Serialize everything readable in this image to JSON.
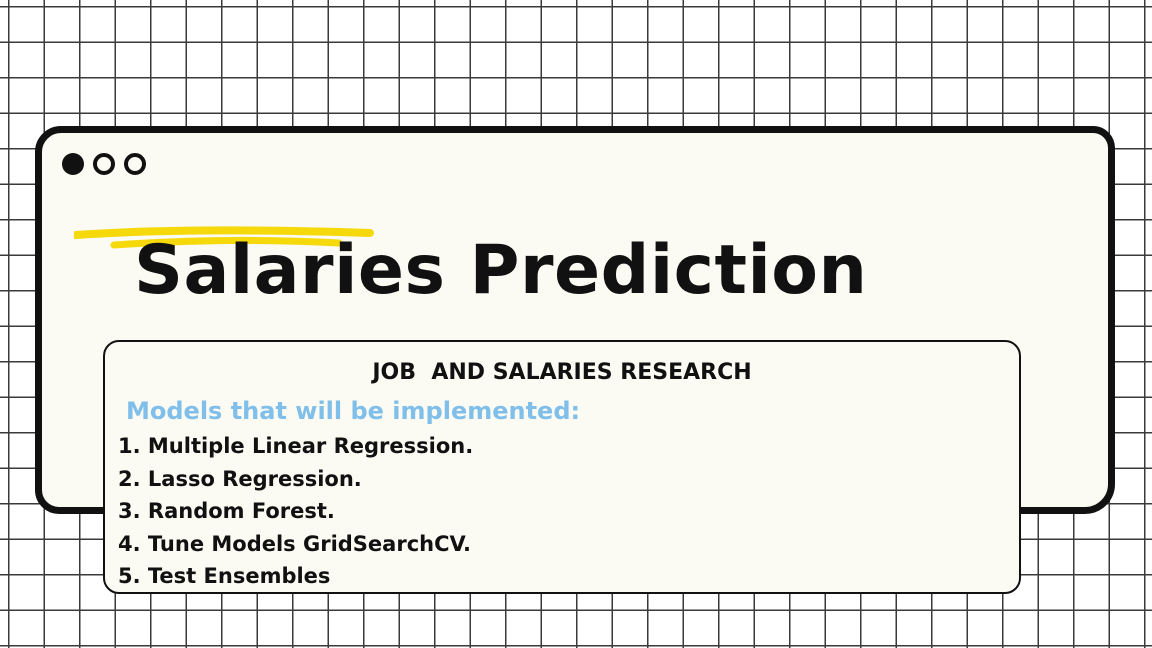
{
  "window": {
    "title": "Salaries Prediction",
    "dots": [
      "window-dot-filled",
      "window-dot-outline",
      "window-dot-outline"
    ]
  },
  "card": {
    "heading": "JOB  AND SALARIES RESEARCH",
    "subheading": "Models that will be implemented:",
    "models": [
      "1. Multiple Linear Regression.",
      "2. Lasso Regression.",
      "3. Random Forest.",
      "4. Tune Models GridSearchCV.",
      "5. Test Ensembles"
    ]
  },
  "colors": {
    "accent_highlight": "#f5d90a",
    "subheading": "#7fbfea",
    "window_bg": "#fbfaf3",
    "ink": "#111111"
  }
}
